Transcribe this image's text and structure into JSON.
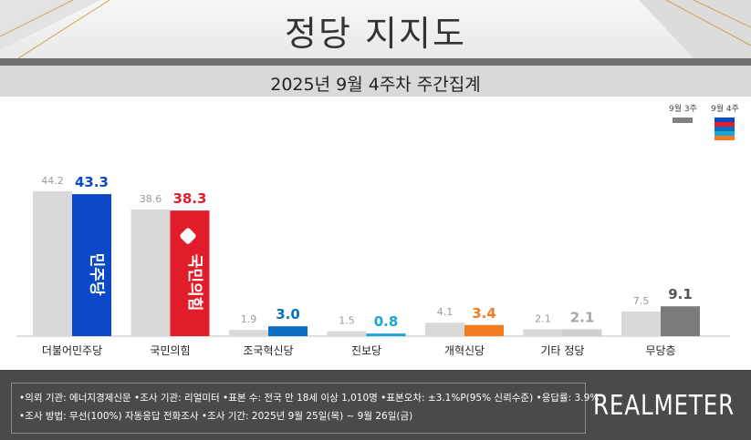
{
  "header": {
    "title": "정당 지지도"
  },
  "subtitle": "2025년 9월 4주차 주간집계",
  "legend": {
    "prev_label": "9월 3주",
    "curr_label": "9월 4주"
  },
  "chart_data": {
    "type": "bar",
    "categories": [
      "더불어민주당",
      "국민의힘",
      "조국혁신당",
      "진보당",
      "개혁신당",
      "기타 정당",
      "무당층"
    ],
    "series": [
      {
        "name": "9월 3주",
        "values": [
          44.2,
          38.6,
          1.9,
          1.5,
          4.1,
          2.1,
          7.5
        ]
      },
      {
        "name": "9월 4주",
        "values": [
          43.3,
          38.3,
          3.0,
          0.8,
          3.4,
          2.1,
          9.1
        ]
      }
    ],
    "value_labels_prev": [
      "44.2",
      "38.6",
      "1.9",
      "1.5",
      "4.1",
      "2.1",
      "7.5"
    ],
    "value_labels_curr": [
      "43.3",
      "38.3",
      "3.0",
      "0.8",
      "3.4",
      "2.1",
      "9.1"
    ],
    "colors": {
      "prev": "#d9d9d9",
      "curr": [
        "#0b49c6",
        "#e11d2b",
        "#0a6fc2",
        "#1ba5d6",
        "#f57c20",
        "#cfcfcf",
        "#7b7b7b"
      ],
      "curr_label": [
        "#0b49c6",
        "#e11d2b",
        "#0a6fc2",
        "#1ba5d6",
        "#f57c20",
        "#a6a6a6",
        "#555555"
      ]
    },
    "bar_logos": {
      "0": "민주당",
      "1": "국민의힘"
    },
    "ylim": [
      0,
      50
    ]
  },
  "footer": {
    "line1": "•의뢰 기관: 에너지경제신문  •조사 기관: 리얼미터 •표본 수: 전국 만 18세 이상 1,010명 •표본오차: ±3.1%P(95% 신뢰수준) •응답률: 3.9%",
    "line2": "•조사 방법: 무선(100%) 자동응답 전화조사 •조사 기간: 2025년 9월 25일(목) ~ 9월 26일(금)",
    "brand": "REALMETER"
  }
}
